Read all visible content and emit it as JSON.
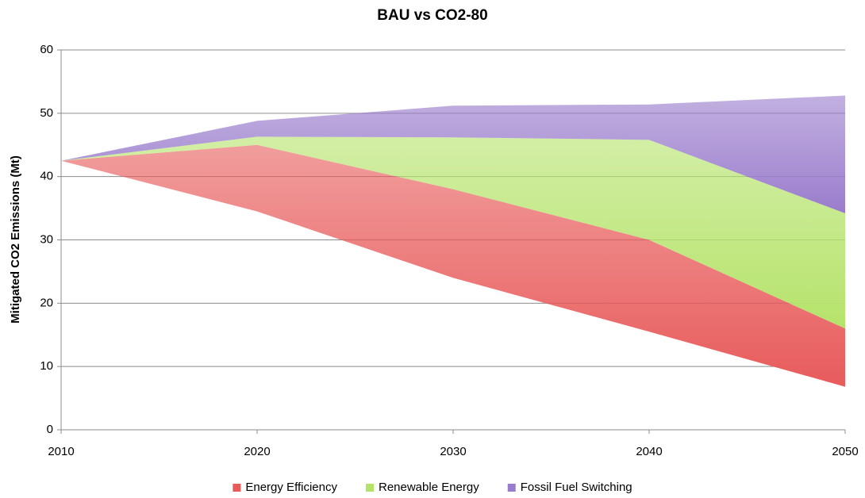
{
  "chart_data": {
    "type": "stacked_area",
    "title": "BAU vs CO2-80",
    "y_label": "Mitigated CO2 Emissions (Mt)",
    "x": [
      2010,
      2020,
      2030,
      2040,
      2050
    ],
    "xlim": [
      2010,
      2050
    ],
    "xticks": [
      2010,
      2020,
      2030,
      2040,
      2050
    ],
    "ylim": [
      0,
      60
    ],
    "yticks": [
      0,
      10,
      20,
      30,
      40,
      50,
      60
    ],
    "grid": true,
    "legend": "bottom",
    "series": [
      {
        "values": [
          42.5,
          34.5,
          24,
          15.5,
          6.8
        ]
      },
      {
        "name": "Energy Efficiency",
        "color": "#e85b5b",
        "values": [
          0,
          10.5,
          14,
          14.5,
          9.2
        ]
      },
      {
        "name": "Renewable Energy",
        "color": "#b5e36a",
        "values": [
          0,
          1.3,
          8.2,
          15.8,
          18.2
        ]
      },
      {
        "name": "Fossil Fuel Switching",
        "color": "#9a7ccc",
        "values": [
          0,
          2.5,
          5,
          5.6,
          18.6
        ]
      }
    ]
  }
}
